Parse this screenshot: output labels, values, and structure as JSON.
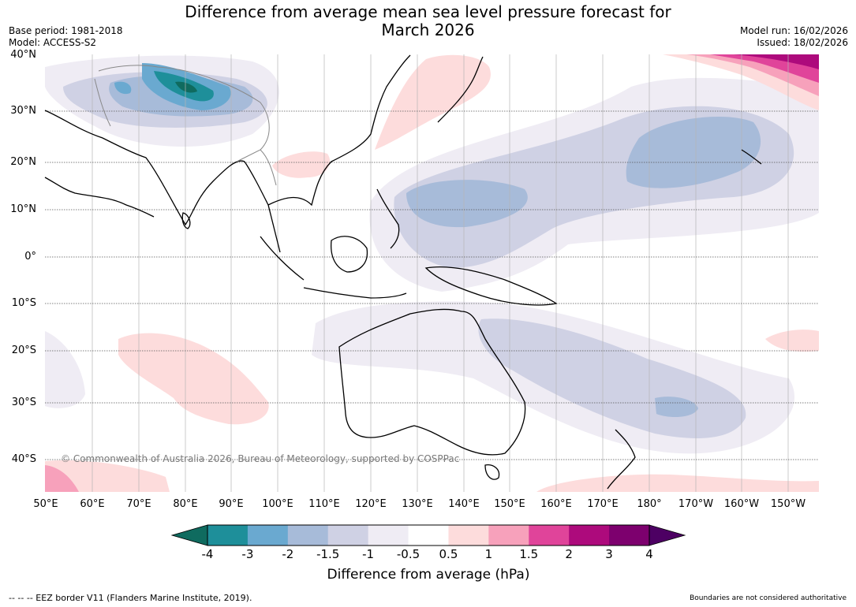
{
  "title_line1": "Difference from average mean sea level pressure forecast for",
  "title_line2": "March 2026",
  "base_period": "Base period: 1981-2018",
  "model": "Model: ACCESS-S2",
  "model_run": "Model run: 16/02/2026",
  "issued": "Issued: 18/02/2026",
  "lat_labels": [
    "40°N",
    "30°N",
    "20°N",
    "10°N",
    "0°",
    "10°S",
    "20°S",
    "30°S",
    "40°S"
  ],
  "lon_labels": [
    "50°E",
    "60°E",
    "70°E",
    "80°E",
    "90°E",
    "100°E",
    "110°E",
    "120°E",
    "130°E",
    "140°E",
    "150°E",
    "160°E",
    "170°E",
    "180°",
    "170°W",
    "160°W",
    "150°W"
  ],
  "copyright": "© Commonwealth of Australia 2026, Bureau of Meteorology, supported by COSPPac",
  "colorbar": {
    "ticks": [
      "-4",
      "-3",
      "-2",
      "-1.5",
      "-1",
      "-0.5",
      "0.5",
      "1",
      "1.5",
      "2",
      "3",
      "4"
    ],
    "colors": [
      "#0f6b5f",
      "#1e8f9a",
      "#6aa9d0",
      "#a7bbd9",
      "#cfd1e4",
      "#efecf4",
      "#ffffff",
      "#fddcdc",
      "#f7a1bb",
      "#e0449a",
      "#ad0a7c",
      "#7d006e",
      "#4d0063"
    ],
    "label": "Difference from average (hPa)"
  },
  "footer_left": "--  --  -- EEZ border V11 (Flanders Marine Institute, 2019).",
  "footer_right": "Boundaries are not considered authoritative"
}
